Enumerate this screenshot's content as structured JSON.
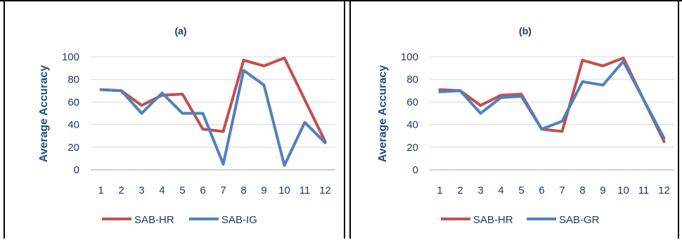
{
  "chart_data": [
    {
      "type": "line",
      "title": "(a)",
      "ylabel": "Average Accuracy",
      "xlabel": "",
      "ylim": [
        0,
        100
      ],
      "yticks": [
        0,
        20,
        40,
        60,
        80,
        100
      ],
      "categories": [
        "1",
        "2",
        "3",
        "4",
        "5",
        "6",
        "7",
        "8",
        "9",
        "10",
        "11",
        "12"
      ],
      "grid": true,
      "legend_position": "bottom",
      "series": [
        {
          "name": "SAB-HR",
          "color": "#c0504d",
          "values": [
            71,
            70,
            57,
            66,
            67,
            36,
            34,
            97,
            92,
            99,
            62,
            25
          ]
        },
        {
          "name": "SAB-IG",
          "color": "#4f81bd",
          "values": [
            71,
            70,
            50,
            68,
            50,
            50,
            5,
            88,
            75,
            4,
            42,
            24
          ]
        }
      ]
    },
    {
      "type": "line",
      "title": "(b)",
      "ylabel": "Average Accuracy",
      "xlabel": "",
      "ylim": [
        0,
        100
      ],
      "yticks": [
        0,
        20,
        40,
        60,
        80,
        100
      ],
      "categories": [
        "1",
        "2",
        "3",
        "4",
        "5",
        "6",
        "7",
        "8",
        "9",
        "10",
        "11",
        "12"
      ],
      "grid": true,
      "legend_position": "bottom",
      "series": [
        {
          "name": "SAB-HR",
          "color": "#c0504d",
          "values": [
            71,
            70,
            57,
            66,
            67,
            36,
            34,
            97,
            92,
            99,
            62,
            25
          ]
        },
        {
          "name": "SAB-GR",
          "color": "#4f81bd",
          "values": [
            69,
            70,
            50,
            64,
            65,
            36,
            43,
            78,
            75,
            96,
            62,
            28
          ]
        }
      ]
    }
  ]
}
